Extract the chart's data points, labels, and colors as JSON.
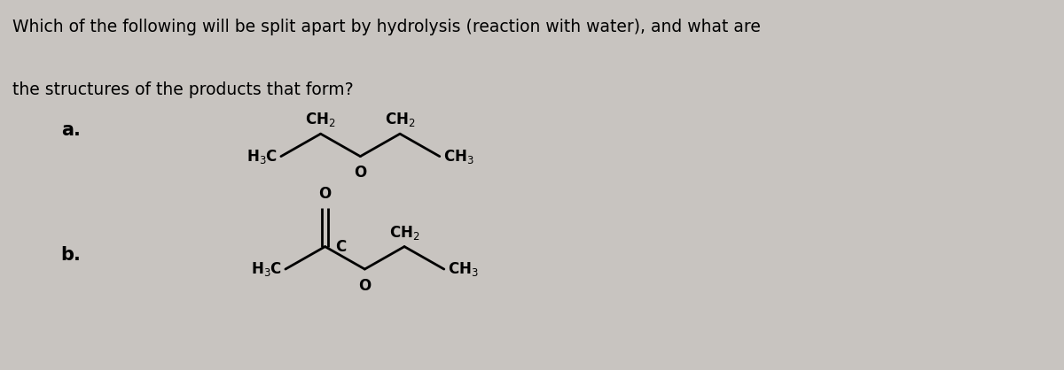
{
  "background_color": "#c8c4c0",
  "title_line1": "Which of the following will be split apart by hydrolysis (reaction with water), and what are",
  "title_line2": "the structures of the products that form?",
  "title_fontsize": 13.5,
  "title_fontweight": "normal",
  "label_a": "a.",
  "label_b": "b.",
  "label_fontsize": 15,
  "label_fontweight": "bold",
  "structure_color": "#000000",
  "structure_linewidth": 2.0,
  "chem_fontsize": 12,
  "chem_fontweight": "bold"
}
